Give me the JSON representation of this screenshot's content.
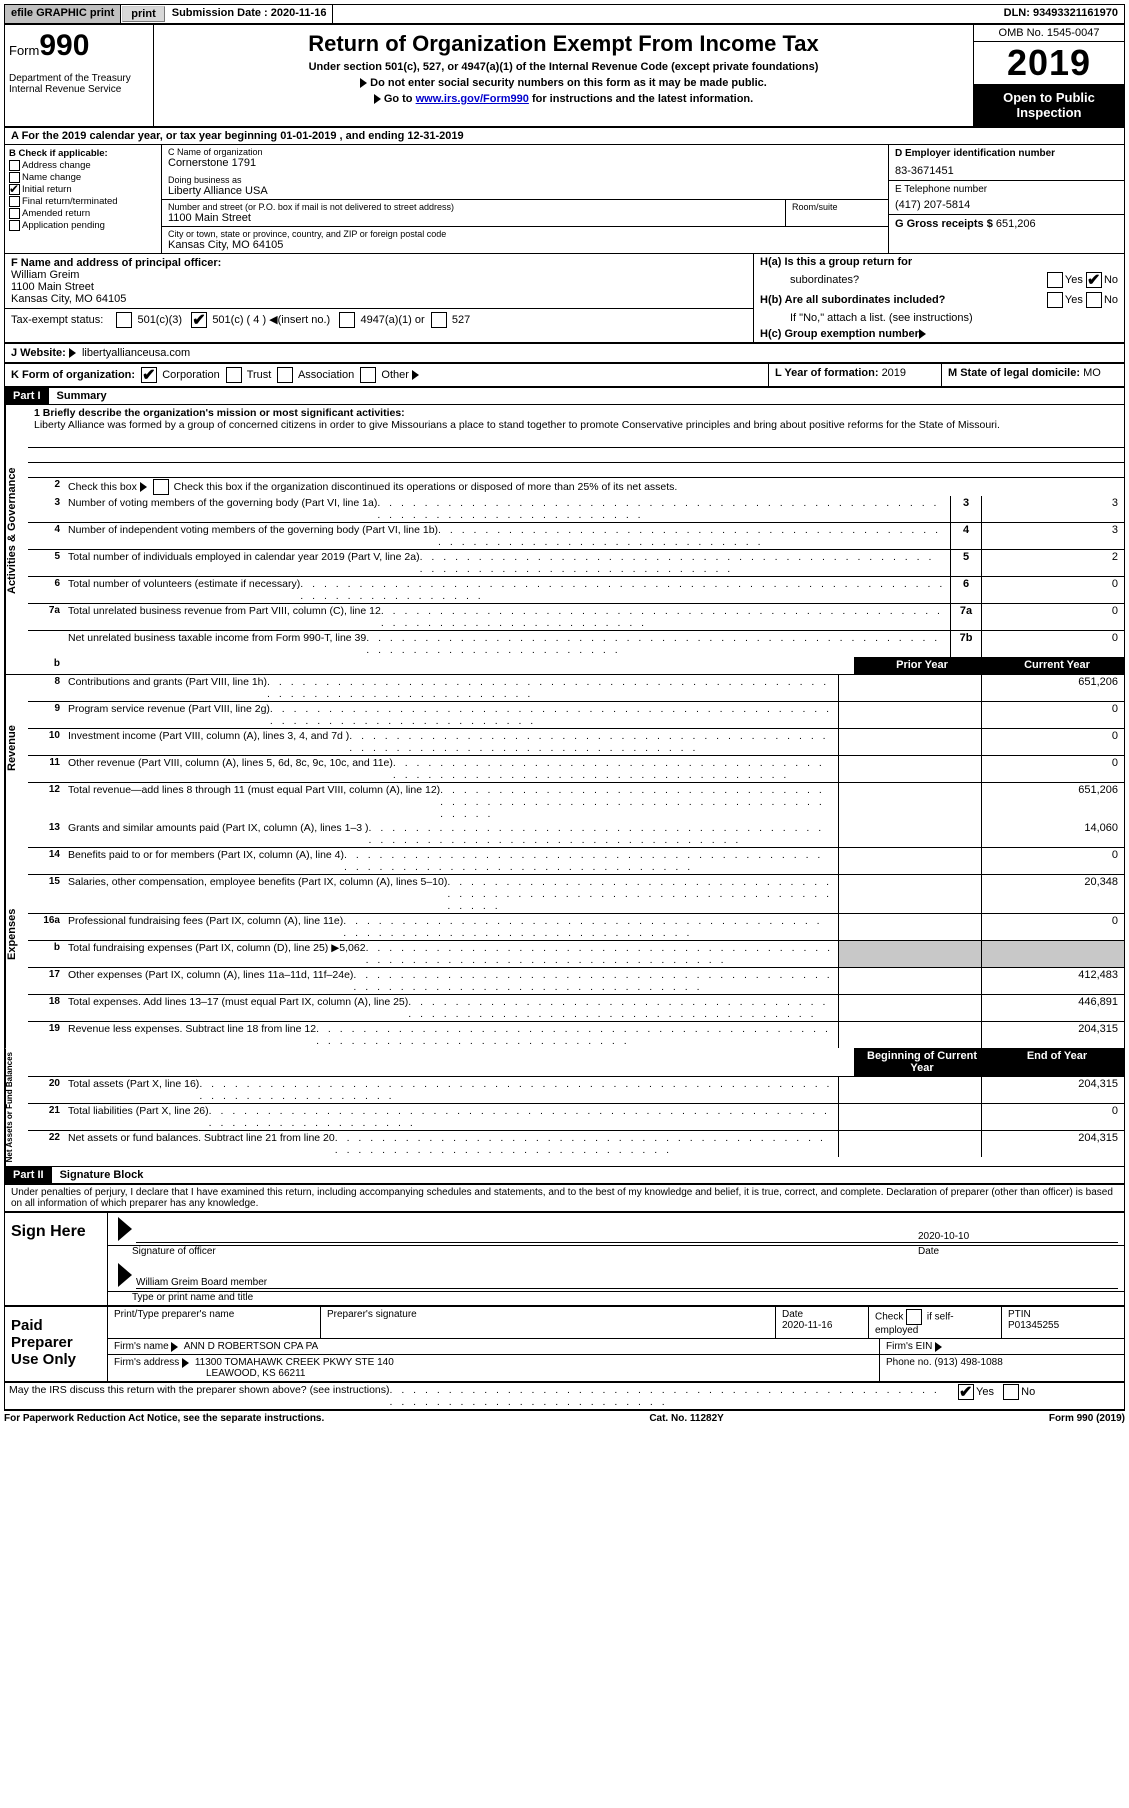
{
  "topbar": {
    "efile": "efile GRAPHIC print",
    "submission_label": "Submission Date : ",
    "submission_date": "2020-11-16",
    "dln": "DLN: 93493321161970"
  },
  "header": {
    "form_prefix": "Form",
    "form_no": "990",
    "dept": "Department of the Treasury\nInternal Revenue Service",
    "title": "Return of Organization Exempt From Income Tax",
    "sub1": "Under section 501(c), 527, or 4947(a)(1) of the Internal Revenue Code (except private foundations)",
    "sub2": "Do not enter social security numbers on this form as it may be made public.",
    "sub3_pre": "Go to ",
    "sub3_link": "www.irs.gov/Form990",
    "sub3_post": " for instructions and the latest information.",
    "omb": "OMB No. 1545-0047",
    "year": "2019",
    "open": "Open to Public Inspection"
  },
  "rowA": "A   For the 2019 calendar year, or tax year beginning 01-01-2019     , and ending 12-31-2019",
  "colB": {
    "head": "B Check if applicable:",
    "addr": "Address change",
    "name": "Name change",
    "init": "Initial return",
    "final": "Final return/terminated",
    "amend": "Amended return",
    "app": "Application pending"
  },
  "colC": {
    "name_label": "C Name of organization",
    "name": "Cornerstone 1791",
    "dba_label": "Doing business as",
    "dba": "Liberty Alliance USA",
    "street_label": "Number and street (or P.O. box if mail is not delivered to street address)",
    "room_label": "Room/suite",
    "street": "1100 Main Street",
    "city_label": "City or town, state or province, country, and ZIP or foreign postal code",
    "city": "Kansas City, MO  64105"
  },
  "colD": {
    "ein_label": "D Employer identification number",
    "ein": "83-3671451",
    "tel_label": "E Telephone number",
    "tel": "(417) 207-5814",
    "gross_label": "G Gross receipts $ ",
    "gross": "651,206"
  },
  "rowF": {
    "label": "F  Name and address of principal officer:",
    "name": "William Greim",
    "street": "1100 Main Street",
    "city": "Kansas City, MO  64105"
  },
  "rowH": {
    "a_label": "H(a)  Is this a group return for",
    "a_sub": "subordinates?",
    "b_label": "H(b)  Are all subordinates included?",
    "b_note": "If \"No,\" attach a list. (see instructions)",
    "c_label": "H(c)  Group exemption number ",
    "yes": "Yes",
    "no": "No"
  },
  "rowI": {
    "label": "Tax-exempt status:",
    "c3": "501(c)(3)",
    "c4_pre": "501(c) ( 4 ) ",
    "c4_post": "(insert no.)",
    "a1": "4947(a)(1) or",
    "527": "527"
  },
  "rowJ": {
    "label": "J   Website: ",
    "val": "libertyallianceusa.com"
  },
  "rowK": {
    "label": "K Form of organization:",
    "corp": "Corporation",
    "trust": "Trust",
    "assoc": "Association",
    "other": "Other ",
    "l_label": "L Year of formation: ",
    "l_val": "2019",
    "m_label": "M State of legal domicile: ",
    "m_val": "MO"
  },
  "part1": {
    "tag": "Part I",
    "title": "Summary"
  },
  "summary": {
    "l1_label": "1  Briefly describe the organization's mission or most significant activities:",
    "l1_text": "Liberty Alliance was formed by a group of concerned citizens in order to give Missourians a place to stand together to promote Conservative principles and bring about positive reforms for the State of Missouri.",
    "l2": "Check this box          if the organization discontinued its operations or disposed of more than 25% of its net assets.",
    "lines_a": [
      {
        "n": "3",
        "t": "Number of voting members of the governing body (Part VI, line 1a)",
        "box": "3",
        "v": "3"
      },
      {
        "n": "4",
        "t": "Number of independent voting members of the governing body (Part VI, line 1b)",
        "box": "4",
        "v": "3"
      },
      {
        "n": "5",
        "t": "Total number of individuals employed in calendar year 2019 (Part V, line 2a)",
        "box": "5",
        "v": "2"
      },
      {
        "n": "6",
        "t": "Total number of volunteers (estimate if necessary)",
        "box": "6",
        "v": "0"
      },
      {
        "n": "7a",
        "t": "Total unrelated business revenue from Part VIII, column (C), line 12",
        "box": "7a",
        "v": "0"
      },
      {
        "n": "",
        "t": "Net unrelated business taxable income from Form 990-T, line 39",
        "box": "7b",
        "v": "0"
      }
    ],
    "prior_hdr": "Prior Year",
    "curr_hdr": "Current Year",
    "revenue": [
      {
        "n": "8",
        "t": "Contributions and grants (Part VIII, line 1h)",
        "p": "",
        "c": "651,206"
      },
      {
        "n": "9",
        "t": "Program service revenue (Part VIII, line 2g)",
        "p": "",
        "c": "0"
      },
      {
        "n": "10",
        "t": "Investment income (Part VIII, column (A), lines 3, 4, and 7d )",
        "p": "",
        "c": "0"
      },
      {
        "n": "11",
        "t": "Other revenue (Part VIII, column (A), lines 5, 6d, 8c, 9c, 10c, and 11e)",
        "p": "",
        "c": "0"
      },
      {
        "n": "12",
        "t": "Total revenue—add lines 8 through 11 (must equal Part VIII, column (A), line 12)",
        "p": "",
        "c": "651,206"
      }
    ],
    "expenses": [
      {
        "n": "13",
        "t": "Grants and similar amounts paid (Part IX, column (A), lines 1–3 )",
        "p": "",
        "c": "14,060"
      },
      {
        "n": "14",
        "t": "Benefits paid to or for members (Part IX, column (A), line 4)",
        "p": "",
        "c": "0"
      },
      {
        "n": "15",
        "t": "Salaries, other compensation, employee benefits (Part IX, column (A), lines 5–10)",
        "p": "",
        "c": "20,348"
      },
      {
        "n": "16a",
        "t": "Professional fundraising fees (Part IX, column (A), line 11e)",
        "p": "",
        "c": "0"
      },
      {
        "n": "b",
        "t": "Total fundraising expenses (Part IX, column (D), line 25) ▶5,062",
        "p": "shaded",
        "c": "shaded"
      },
      {
        "n": "17",
        "t": "Other expenses (Part IX, column (A), lines 11a–11d, 11f–24e)",
        "p": "",
        "c": "412,483"
      },
      {
        "n": "18",
        "t": "Total expenses. Add lines 13–17 (must equal Part IX, column (A), line 25)",
        "p": "",
        "c": "446,891"
      },
      {
        "n": "19",
        "t": "Revenue less expenses. Subtract line 18 from line 12",
        "p": "",
        "c": "204,315"
      }
    ],
    "begin_hdr": "Beginning of Current Year",
    "end_hdr": "End of Year",
    "net": [
      {
        "n": "20",
        "t": "Total assets (Part X, line 16)",
        "p": "",
        "c": "204,315"
      },
      {
        "n": "21",
        "t": "Total liabilities (Part X, line 26)",
        "p": "",
        "c": "0"
      },
      {
        "n": "22",
        "t": "Net assets or fund balances. Subtract line 21 from line 20",
        "p": "",
        "c": "204,315"
      }
    ]
  },
  "vtabs": {
    "ag": "Activities & Governance",
    "rev": "Revenue",
    "exp": "Expenses",
    "net": "Net Assets or\nFund Balances"
  },
  "part2": {
    "tag": "Part II",
    "title": "Signature Block"
  },
  "penalty": "Under penalties of perjury, I declare that I have examined this return, including accompanying schedules and statements, and to the best of my knowledge and belief, it is true, correct, and complete. Declaration of preparer (other than officer) is based on all information of which preparer has any knowledge.",
  "sign": {
    "label": "Sign Here",
    "officer_line": "Signature of officer",
    "date": "2020-10-10",
    "date_label": "Date",
    "name": "William Greim  Board member",
    "name_label": "Type or print name and title"
  },
  "prep": {
    "label": "Paid Preparer Use Only",
    "h1": "Print/Type preparer's name",
    "h2": "Preparer's signature",
    "h3_label": "Date",
    "h3": "2020-11-16",
    "h4": "Check         if self-employed",
    "h5_label": "PTIN",
    "h5": "P01345255",
    "firm_label": "Firm's name     ",
    "firm": "ANN D ROBERTSON CPA PA",
    "ein_label": "Firm's EIN ",
    "addr_label": "Firm's address ",
    "addr1": "11300 TOMAHAWK CREEK PKWY STE 140",
    "addr2": "LEAWOOD, KS  66211",
    "phone_label": "Phone no. ",
    "phone": "(913) 498-1088"
  },
  "discuss": "May the IRS discuss this return with the preparer shown above? (see instructions)",
  "footer": {
    "l": "For Paperwork Reduction Act Notice, see the separate instructions.",
    "m": "Cat. No. 11282Y",
    "r": "Form 990 (2019)"
  }
}
